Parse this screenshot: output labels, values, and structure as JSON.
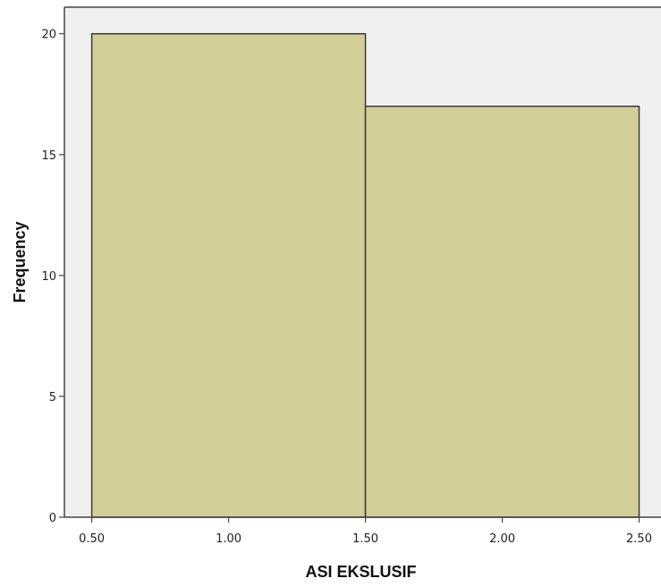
{
  "chart_data": {
    "type": "bar",
    "subtype": "histogram",
    "bins": [
      {
        "x0": 0.5,
        "x1": 1.5,
        "value": 20
      },
      {
        "x0": 1.5,
        "x1": 2.5,
        "value": 17
      }
    ],
    "xlabel": "ASI EKSLUSIF",
    "ylabel": "Frequency",
    "xlim": [
      0.4,
      2.58
    ],
    "ylim": [
      0,
      21.1
    ],
    "x_ticks": [
      0.5,
      1.0,
      1.5,
      2.0,
      2.5
    ],
    "x_tick_labels": [
      "0.50",
      "1.00",
      "1.50",
      "2.00",
      "2.50"
    ],
    "y_ticks": [
      0,
      5,
      10,
      15,
      20
    ],
    "y_tick_labels": [
      "0",
      "5",
      "10",
      "15",
      "20"
    ],
    "grid": false,
    "legend": "none"
  },
  "colors": {
    "plot_background": "#f0f0f0",
    "bar_fill": "#d3ce98",
    "bar_stroke": "#3a3a3a",
    "axis": "#444444"
  }
}
